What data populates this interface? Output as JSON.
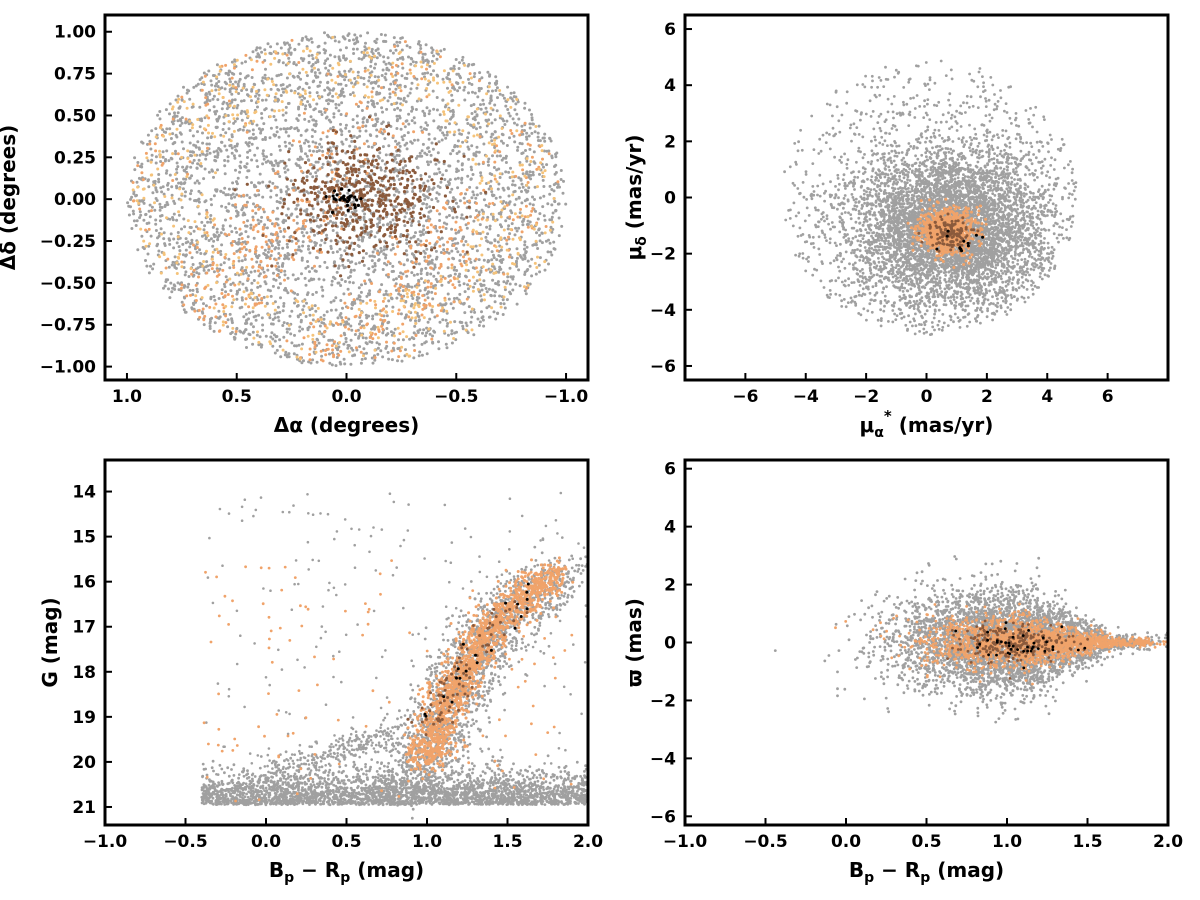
{
  "chart_data": [
    {
      "type": "scatter",
      "panel": "top-left",
      "xlabel": "Δα (degrees)",
      "ylabel": "Δδ (degrees)",
      "xlim": [
        1.1,
        -1.1
      ],
      "ylim": [
        -1.08,
        1.1
      ],
      "x_reversed": true,
      "xticks": [
        1.0,
        0.5,
        0.0,
        -0.5,
        -1.0
      ],
      "xtick_labels": [
        "1.0",
        "0.5",
        "0.0",
        "−0.5",
        "−1.0"
      ],
      "yticks": [
        1.0,
        0.75,
        0.5,
        0.25,
        0.0,
        -0.25,
        -0.5,
        -0.75,
        -1.0
      ],
      "ytick_labels": [
        "1.00",
        "0.75",
        "0.50",
        "0.25",
        "0.00",
        "−0.25",
        "−0.50",
        "−0.75",
        "−1.00"
      ],
      "grid": false,
      "series": [
        {
          "color": "#a0a0a0",
          "distribution": "uniform disk",
          "center": [
            0.0,
            0.0
          ],
          "radius": 1.0
        },
        {
          "color": "#f0a36a",
          "distribution": "clumpy, stronger toward bottom",
          "center": [
            0.05,
            -0.3
          ],
          "spread": [
            0.45,
            0.45
          ]
        },
        {
          "color": "#f5c37a",
          "distribution": "sparse patches near the edge",
          "center": [
            0.0,
            0.0
          ],
          "spread": [
            0.7,
            0.7
          ]
        },
        {
          "color": "#8b5a3c",
          "distribution": "central concentration",
          "center": [
            -0.08,
            0.0
          ],
          "spread": [
            0.18,
            0.16
          ]
        },
        {
          "color": "#000000",
          "distribution": "core",
          "center": [
            0.0,
            0.01
          ],
          "spread": [
            0.04,
            0.03
          ]
        }
      ]
    },
    {
      "type": "scatter",
      "panel": "top-right",
      "xlabel": "μα* (mas/yr)",
      "ylabel": "μδ (mas/yr)",
      "xlim": [
        -8,
        8
      ],
      "ylim": [
        -6.5,
        6.5
      ],
      "xticks": [
        -6,
        -4,
        -2,
        0,
        2,
        4,
        6
      ],
      "xtick_labels": [
        "−6",
        "−4",
        "−2",
        "0",
        "2",
        "4",
        "6"
      ],
      "yticks": [
        -6,
        -4,
        -2,
        0,
        2,
        4,
        6
      ],
      "ytick_labels": [
        "−6",
        "−4",
        "−2",
        "0",
        "2",
        "4",
        "6"
      ],
      "grid": false,
      "series": [
        {
          "color": "#a0a0a0",
          "distribution": "dense core with halo",
          "center": [
            0.8,
            -1.1
          ],
          "spread": [
            1.6,
            1.4
          ],
          "halo_radius": 4.9
        },
        {
          "color": "#f0a36a",
          "distribution": "compact clump",
          "center": [
            0.7,
            -1.2
          ],
          "spread": [
            0.45,
            0.38
          ]
        },
        {
          "color": "#8b5a3c",
          "distribution": "compact clump",
          "center": [
            0.8,
            -1.3
          ],
          "spread": [
            0.3,
            0.28
          ]
        },
        {
          "color": "#000000",
          "distribution": "few points",
          "center": [
            1.2,
            -1.6
          ],
          "spread": [
            0.4,
            0.25
          ]
        }
      ]
    },
    {
      "type": "scatter",
      "panel": "bottom-left",
      "xlabel": "Bp − Rp (mag)",
      "ylabel": "G (mag)",
      "xlim": [
        -1.0,
        2.0
      ],
      "ylim": [
        21.4,
        13.3
      ],
      "y_reversed": true,
      "xticks": [
        -1.0,
        -0.5,
        0.0,
        0.5,
        1.0,
        1.5,
        2.0
      ],
      "xtick_labels": [
        "−1.0",
        "−0.5",
        "0.0",
        "0.5",
        "1.0",
        "1.5",
        "2.0"
      ],
      "yticks": [
        21,
        20,
        19,
        18,
        17,
        16,
        15,
        14
      ],
      "ytick_labels": [
        "21",
        "20",
        "19",
        "18",
        "17",
        "16",
        "15",
        "14"
      ],
      "grid": false,
      "series": [
        {
          "color": "#a0a0a0",
          "distribution": "faint band near G≈20.8 plus sequence",
          "sequence": [
            [
              0.9,
              20.6
            ],
            [
              1.05,
              19.5
            ],
            [
              1.2,
              18.3
            ],
            [
              1.35,
              17.3
            ],
            [
              1.55,
              16.5
            ],
            [
              1.85,
              15.8
            ]
          ]
        },
        {
          "color": "#f0a36a",
          "distribution": "main sequence",
          "sequence": [
            [
              1.0,
              20.0
            ],
            [
              1.05,
              19.3
            ],
            [
              1.15,
              18.5
            ],
            [
              1.25,
              17.8
            ],
            [
              1.4,
              17.0
            ],
            [
              1.6,
              16.3
            ],
            [
              1.8,
              15.8
            ]
          ]
        },
        {
          "color": "#8b5a3c",
          "distribution": "main sequence, few points",
          "sequence": [
            [
              1.0,
              19.5
            ],
            [
              1.2,
              18.0
            ],
            [
              1.5,
              16.5
            ]
          ]
        },
        {
          "color": "#000000",
          "distribution": "few points",
          "sequence": [
            [
              1.0,
              19.0
            ],
            [
              1.3,
              17.5
            ],
            [
              1.8,
              15.8
            ]
          ]
        }
      ]
    },
    {
      "type": "scatter",
      "panel": "bottom-right",
      "xlabel": "Bp − Rp (mag)",
      "ylabel": "ϖ (mas)",
      "xlim": [
        -1.0,
        2.0
      ],
      "ylim": [
        -6.3,
        6.3
      ],
      "xticks": [
        -1.0,
        -0.5,
        0.0,
        0.5,
        1.0,
        1.5,
        2.0
      ],
      "xtick_labels": [
        "−1.0",
        "−0.5",
        "0.0",
        "0.5",
        "1.0",
        "1.5",
        "2.0"
      ],
      "yticks": [
        -6,
        -4,
        -2,
        0,
        2,
        4,
        6
      ],
      "ytick_labels": [
        "−6",
        "−4",
        "−2",
        "0",
        "2",
        "4",
        "6"
      ],
      "grid": false,
      "series": [
        {
          "color": "#a0a0a0",
          "distribution": "band around 0, wider at faint colours",
          "center": [
            1.0,
            0.0
          ],
          "spread": [
            0.35,
            0.9
          ]
        },
        {
          "color": "#f0a36a",
          "distribution": "band around 0, narrowing to the red",
          "center": [
            1.1,
            0.0
          ],
          "spread": [
            0.3,
            0.45
          ]
        },
        {
          "color": "#8b5a3c",
          "distribution": "band around 0",
          "center": [
            1.05,
            0.0
          ],
          "spread": [
            0.2,
            0.3
          ]
        },
        {
          "color": "#000000",
          "distribution": "few points",
          "center": [
            1.1,
            0.0
          ],
          "spread": [
            0.2,
            0.3
          ]
        }
      ]
    }
  ]
}
